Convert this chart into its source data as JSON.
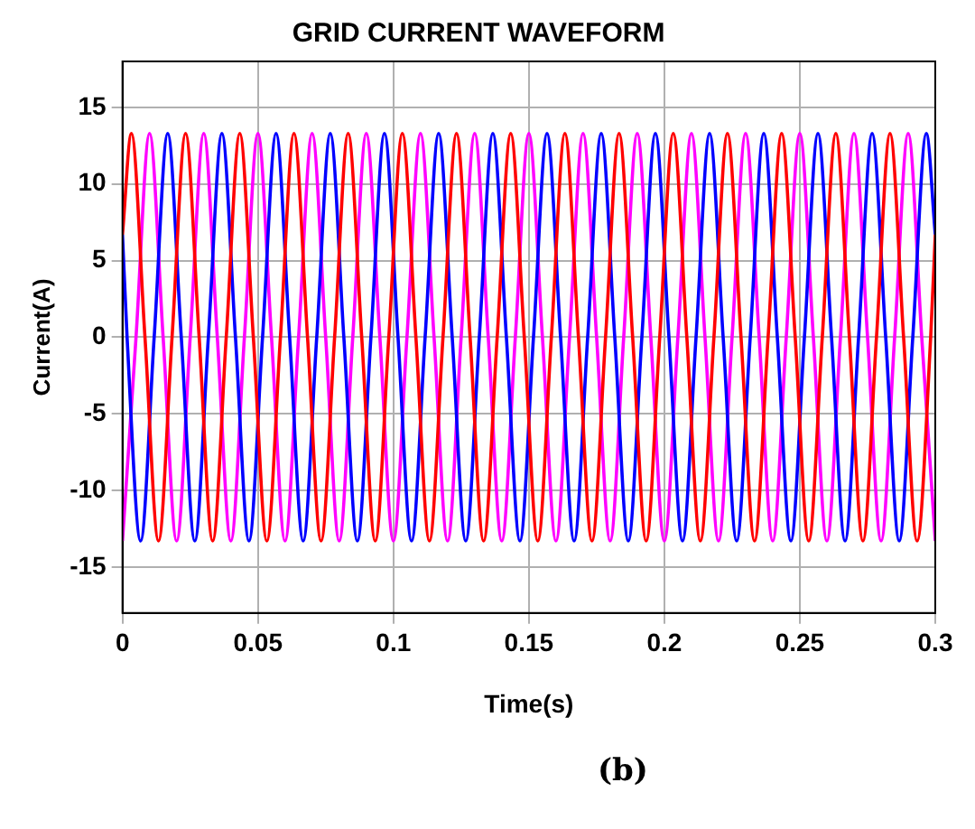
{
  "chart_data": {
    "type": "line",
    "title": "GRID CURRENT WAVEFORM",
    "xlabel": "Time(s)",
    "ylabel": "Current(A)",
    "annotations": [
      "(b)"
    ],
    "xlim": [
      0,
      0.3
    ],
    "xticks": [
      0,
      0.05,
      0.1,
      0.15,
      0.2,
      0.25,
      0.3
    ],
    "ylim": [
      -18,
      18
    ],
    "yticks": [
      -15,
      -10,
      -5,
      0,
      5,
      10,
      15
    ],
    "grid": true,
    "legend": false,
    "marker": "none",
    "line_style": "solid",
    "series": [
      {
        "color": "#ff0000",
        "x": [
          0,
          0.0033,
          0.0083,
          0.0133,
          0.0183,
          0.0233,
          0.0283,
          0.0333,
          0.0383,
          0.0433,
          0.0483,
          0.0533,
          0.0583,
          0.0633,
          0.0683,
          0.0733,
          0.0783,
          0.0833,
          0.0883,
          0.0933,
          0.0983,
          0.1033,
          0.1083,
          0.1133,
          0.1183,
          0.1233,
          0.1283,
          0.1333,
          0.1383,
          0.1433,
          0.1483,
          0.1533,
          0.1583,
          0.1633,
          0.1683,
          0.1733,
          0.1783,
          0.1833,
          0.1883,
          0.1933,
          0.1983,
          0.2033,
          0.2083,
          0.2133,
          0.2183,
          0.2233,
          0.2283,
          0.2333,
          0.2383,
          0.2433,
          0.2483,
          0.2533,
          0.2583,
          0.2633,
          0.2683,
          0.2733,
          0.2783,
          0.2833,
          0.2883,
          0.2933,
          0.2983,
          0.3
        ],
        "values": [
          6.7,
          13.3,
          0,
          -13.3,
          0,
          13.3,
          0,
          -13.3,
          0,
          13.3,
          0,
          -13.3,
          0,
          13.3,
          0,
          -13.3,
          0,
          13.3,
          0,
          -13.3,
          0,
          13.3,
          0,
          -13.3,
          0,
          13.3,
          0,
          -13.3,
          0,
          13.3,
          0,
          -13.3,
          0,
          13.3,
          0,
          -13.3,
          0,
          13.3,
          0,
          -13.3,
          0,
          13.3,
          0,
          -13.3,
          0,
          13.3,
          0,
          -13.3,
          0,
          13.3,
          0,
          -13.3,
          0,
          13.3,
          0,
          -13.3,
          0,
          13.3,
          0,
          -13.3,
          0,
          6.7
        ]
      },
      {
        "color": "#0000ff",
        "x": [
          0,
          0.0017,
          0.0067,
          0.0117,
          0.0167,
          0.0217,
          0.0267,
          0.0317,
          0.0367,
          0.0417,
          0.0467,
          0.0517,
          0.0567,
          0.0617,
          0.0667,
          0.0717,
          0.0767,
          0.0817,
          0.0867,
          0.0917,
          0.0967,
          0.1017,
          0.1067,
          0.1117,
          0.1167,
          0.1217,
          0.1267,
          0.1317,
          0.1367,
          0.1417,
          0.1467,
          0.1517,
          0.1567,
          0.1617,
          0.1667,
          0.1717,
          0.1767,
          0.1817,
          0.1867,
          0.1917,
          0.1967,
          0.2017,
          0.2067,
          0.2117,
          0.2167,
          0.2217,
          0.2267,
          0.2317,
          0.2367,
          0.2417,
          0.2467,
          0.2517,
          0.2567,
          0.2617,
          0.2667,
          0.2717,
          0.2767,
          0.2817,
          0.2867,
          0.2917,
          0.2967,
          0.3
        ],
        "values": [
          6.7,
          0,
          -13.3,
          0,
          13.3,
          0,
          -13.3,
          0,
          13.3,
          0,
          -13.3,
          0,
          13.3,
          0,
          -13.3,
          0,
          13.3,
          0,
          -13.3,
          0,
          13.3,
          0,
          -13.3,
          0,
          13.3,
          0,
          -13.3,
          0,
          13.3,
          0,
          -13.3,
          0,
          13.3,
          0,
          -13.3,
          0,
          13.3,
          0,
          -13.3,
          0,
          13.3,
          0,
          -13.3,
          0,
          13.3,
          0,
          -13.3,
          0,
          13.3,
          0,
          -13.3,
          0,
          13.3,
          0,
          -13.3,
          0,
          13.3,
          0,
          -13.3,
          0,
          13.3,
          6.7
        ]
      },
      {
        "color": "#ff00ff",
        "x": [
          0,
          0.005,
          0.01,
          0.015,
          0.02,
          0.025,
          0.03,
          0.035,
          0.04,
          0.045,
          0.05,
          0.055,
          0.06,
          0.065,
          0.07,
          0.075,
          0.08,
          0.085,
          0.09,
          0.095,
          0.1,
          0.105,
          0.11,
          0.115,
          0.12,
          0.125,
          0.13,
          0.135,
          0.14,
          0.145,
          0.15,
          0.155,
          0.16,
          0.165,
          0.17,
          0.175,
          0.18,
          0.185,
          0.19,
          0.195,
          0.2,
          0.205,
          0.21,
          0.215,
          0.22,
          0.225,
          0.23,
          0.235,
          0.24,
          0.245,
          0.25,
          0.255,
          0.26,
          0.265,
          0.27,
          0.275,
          0.28,
          0.285,
          0.29,
          0.295,
          0.3
        ],
        "values": [
          -13.3,
          0,
          13.3,
          0,
          -13.3,
          0,
          13.3,
          0,
          -13.3,
          0,
          13.3,
          0,
          -13.3,
          0,
          13.3,
          0,
          -13.3,
          0,
          13.3,
          0,
          -13.3,
          0,
          13.3,
          0,
          -13.3,
          0,
          13.3,
          0,
          -13.3,
          0,
          13.3,
          0,
          -13.3,
          0,
          13.3,
          0,
          -13.3,
          0,
          13.3,
          0,
          -13.3,
          0,
          13.3,
          0,
          -13.3,
          0,
          13.3,
          0,
          -13.3,
          0,
          13.3,
          0,
          -13.3,
          0,
          13.3,
          0,
          -13.3,
          0,
          13.3,
          0,
          -13.3
        ]
      }
    ]
  }
}
